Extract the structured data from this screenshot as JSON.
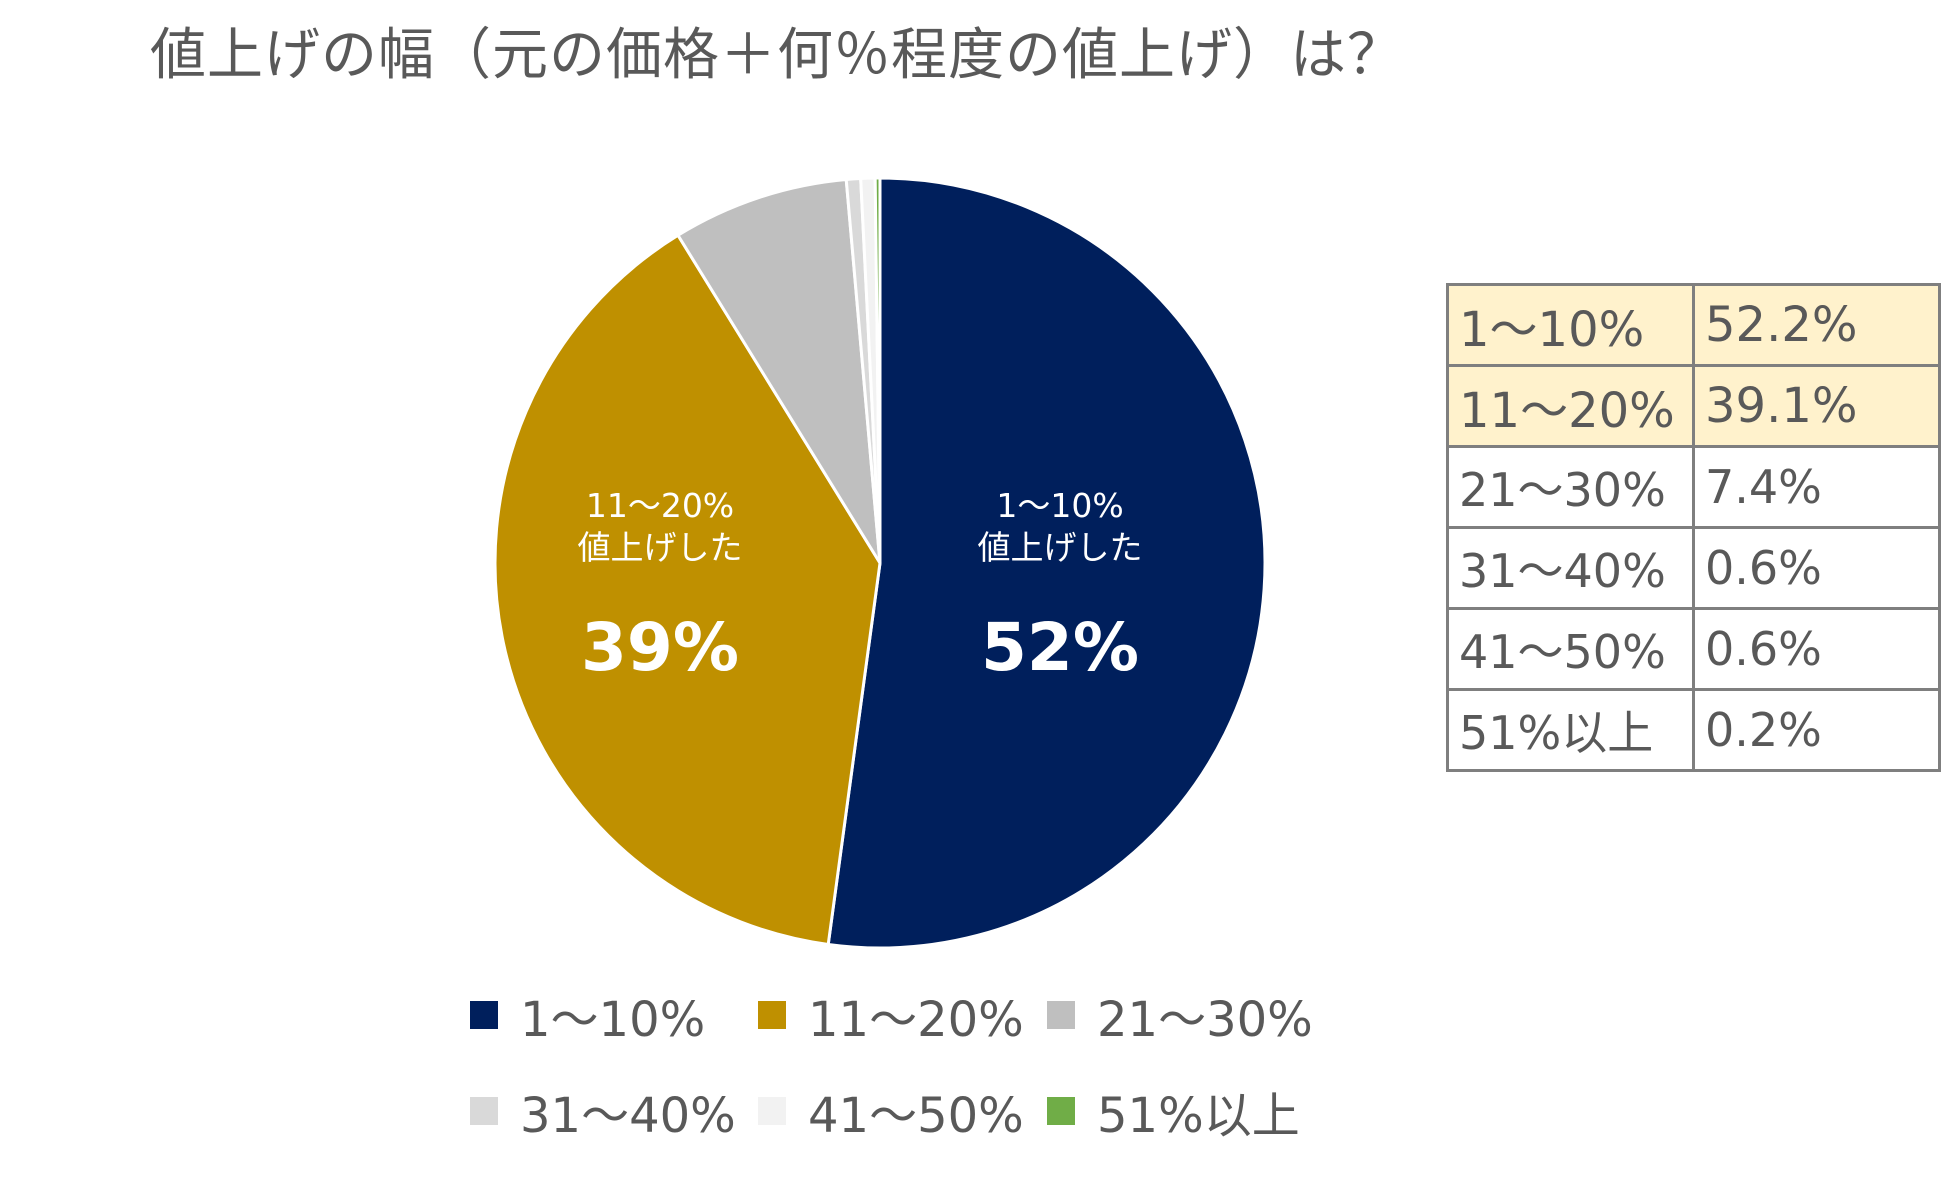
{
  "title": "値上げの幅（元の価格＋何％程度の値上げ）は？",
  "chart_data": {
    "type": "pie",
    "title": "値上げの幅（元の価格＋何％程度の値上げ）は？",
    "categories": [
      "1〜10%",
      "11〜20%",
      "21〜30%",
      "31〜40%",
      "41〜50%",
      "51%以上"
    ],
    "values": [
      52.2,
      39.1,
      7.4,
      0.6,
      0.6,
      0.2
    ],
    "colors": [
      "#001f5c",
      "#bf9000",
      "#bfbfbf",
      "#d9d9d9",
      "#f2f2f2",
      "#70ad47"
    ],
    "legend_position": "bottom",
    "slice_labels": [
      {
        "line1": "1〜10%",
        "line2": "値上げした",
        "value": "52%"
      },
      {
        "line1": "11〜20%",
        "line2": "値上げした",
        "value": "39%"
      }
    ]
  },
  "table": {
    "rows": [
      {
        "range": "1〜10%",
        "value": "52.2%"
      },
      {
        "range": "11〜20%",
        "value": "39.1%"
      },
      {
        "range": "21〜30%",
        "value": "7.4%"
      },
      {
        "range": "31〜40%",
        "value": "0.6%"
      },
      {
        "range": "41〜50%",
        "value": "0.6%"
      },
      {
        "range": "51%以上",
        "value": "0.2%"
      }
    ]
  }
}
